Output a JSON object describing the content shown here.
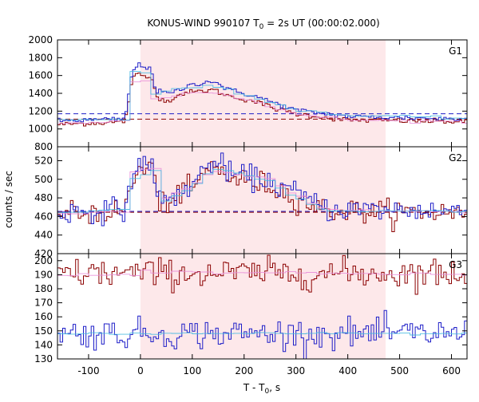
{
  "chart_data": {
    "type": "line",
    "title_prefix": "KONUS-WIND 990107 T",
    "title_sub": "0",
    "title_suffix": " = 2s UT (00:00:02.000)",
    "xlabel_prefix": "T - T",
    "xlabel_sub": "0",
    "xlabel_suffix": ", s",
    "ylabel": "counts / sec",
    "xlim": [
      -160,
      630
    ],
    "x_ticks": [
      -100,
      0,
      100,
      200,
      300,
      400,
      500,
      600
    ],
    "highlight_interval": [
      0,
      473
    ],
    "highlight_color": "#fde8ea",
    "colors": {
      "red": "#8b0000",
      "blue": "#1e1ec8",
      "pink": "#e88bd8",
      "cyan": "#40b8e0"
    },
    "panels": [
      {
        "name": "G1",
        "ylim": [
          800,
          2000
        ],
        "y_ticks": [
          800,
          1000,
          1200,
          1400,
          1600,
          1800,
          2000
        ],
        "y_tick_labels": [
          "800",
          "1000",
          "1200",
          "1400",
          "1600",
          "1800",
          "2000"
        ],
        "bg_levels": {
          "red": 1110,
          "blue": 1170
        },
        "series": [
          {
            "color": "red",
            "profile": [
              [
                -160,
                1050
              ],
              [
                -30,
                1080
              ],
              [
                -15,
                1560
              ],
              [
                -5,
                1620
              ],
              [
                5,
                1600
              ],
              [
                25,
                1550
              ],
              [
                35,
                1320
              ],
              [
                60,
                1330
              ],
              [
                80,
                1400
              ],
              [
                110,
                1420
              ],
              [
                140,
                1440
              ],
              [
                170,
                1370
              ],
              [
                220,
                1310
              ],
              [
                260,
                1230
              ],
              [
                300,
                1170
              ],
              [
                400,
                1100
              ],
              [
                630,
                1080
              ]
            ]
          },
          {
            "color": "blue",
            "profile": [
              [
                -160,
                1090
              ],
              [
                -30,
                1110
              ],
              [
                -15,
                1660
              ],
              [
                -5,
                1720
              ],
              [
                5,
                1700
              ],
              [
                20,
                1690
              ],
              [
                30,
                1420
              ],
              [
                60,
                1400
              ],
              [
                100,
                1500
              ],
              [
                140,
                1540
              ],
              [
                170,
                1440
              ],
              [
                220,
                1370
              ],
              [
                260,
                1290
              ],
              [
                300,
                1210
              ],
              [
                400,
                1140
              ],
              [
                630,
                1110
              ]
            ]
          },
          {
            "color": "pink",
            "profile": [
              [
                -160,
                1070
              ],
              [
                -30,
                1090
              ],
              [
                -15,
                1520
              ],
              [
                5,
                1590
              ],
              [
                30,
                1340
              ],
              [
                100,
                1410
              ],
              [
                150,
                1400
              ],
              [
                220,
                1300
              ],
              [
                300,
                1170
              ],
              [
                400,
                1100
              ],
              [
                630,
                1080
              ]
            ]
          },
          {
            "color": "cyan",
            "profile": [
              [
                -160,
                1100
              ],
              [
                -30,
                1110
              ],
              [
                -15,
                1640
              ],
              [
                5,
                1690
              ],
              [
                30,
                1400
              ],
              [
                100,
                1480
              ],
              [
                150,
                1470
              ],
              [
                220,
                1350
              ],
              [
                300,
                1220
              ],
              [
                400,
                1150
              ],
              [
                630,
                1120
              ]
            ]
          }
        ]
      },
      {
        "name": "G2",
        "ylim": [
          420,
          535
        ],
        "y_ticks": [
          420,
          440,
          460,
          480,
          500,
          520
        ],
        "y_tick_labels": [
          "420",
          "440",
          "460",
          "480",
          "500",
          "520"
        ],
        "bg_levels": {
          "red": 464.5,
          "blue": 465.5
        },
        "series": [
          {
            "color": "red",
            "profile": [
              [
                -160,
                462
              ],
              [
                -30,
                466
              ],
              [
                -15,
                500
              ],
              [
                0,
                510
              ],
              [
                25,
                515
              ],
              [
                35,
                470
              ],
              [
                60,
                480
              ],
              [
                100,
                490
              ],
              [
                140,
                515
              ],
              [
                180,
                500
              ],
              [
                240,
                495
              ],
              [
                300,
                480
              ],
              [
                360,
                466
              ],
              [
                630,
                464
              ]
            ]
          },
          {
            "color": "blue",
            "profile": [
              [
                -160,
                464
              ],
              [
                -30,
                468
              ],
              [
                -15,
                505
              ],
              [
                0,
                515
              ],
              [
                25,
                518
              ],
              [
                35,
                475
              ],
              [
                60,
                478
              ],
              [
                100,
                495
              ],
              [
                140,
                520
              ],
              [
                180,
                505
              ],
              [
                240,
                500
              ],
              [
                300,
                485
              ],
              [
                360,
                468
              ],
              [
                630,
                466
              ]
            ]
          },
          {
            "color": "pink",
            "profile": [
              [
                -160,
                463
              ],
              [
                -30,
                466
              ],
              [
                -10,
                508
              ],
              [
                30,
                512
              ],
              [
                40,
                478
              ],
              [
                100,
                492
              ],
              [
                140,
                510
              ],
              [
                250,
                500
              ],
              [
                300,
                482
              ],
              [
                360,
                467
              ],
              [
                630,
                465
              ]
            ]
          },
          {
            "color": "cyan",
            "profile": [
              [
                -160,
                464
              ],
              [
                -30,
                467
              ],
              [
                -10,
                502
              ],
              [
                30,
                508
              ],
              [
                40,
                474
              ],
              [
                100,
                490
              ],
              [
                140,
                512
              ],
              [
                250,
                498
              ],
              [
                300,
                480
              ],
              [
                360,
                466
              ],
              [
                630,
                465
              ]
            ]
          }
        ]
      },
      {
        "name": "G3",
        "ylim": [
          130,
          205
        ],
        "y_ticks": [
          130,
          140,
          150,
          160,
          170,
          180,
          190,
          200
        ],
        "y_tick_labels": [
          "130",
          "140",
          "150",
          "160",
          "170",
          "180",
          "190",
          "200"
        ],
        "series": [
          {
            "color": "red",
            "profile": [
              [
                -160,
                191
              ],
              [
                630,
                191
              ]
            ]
          },
          {
            "color": "blue",
            "profile": [
              [
                -160,
                148
              ],
              [
                630,
                148
              ]
            ]
          },
          {
            "color": "pink",
            "profile": [
              [
                -160,
                190
              ],
              [
                0,
                190
              ],
              [
                5,
                194
              ],
              [
                20,
                192
              ],
              [
                630,
                190
              ]
            ]
          },
          {
            "color": "cyan",
            "profile": [
              [
                -160,
                148
              ],
              [
                630,
                148
              ]
            ]
          }
        ]
      }
    ]
  }
}
